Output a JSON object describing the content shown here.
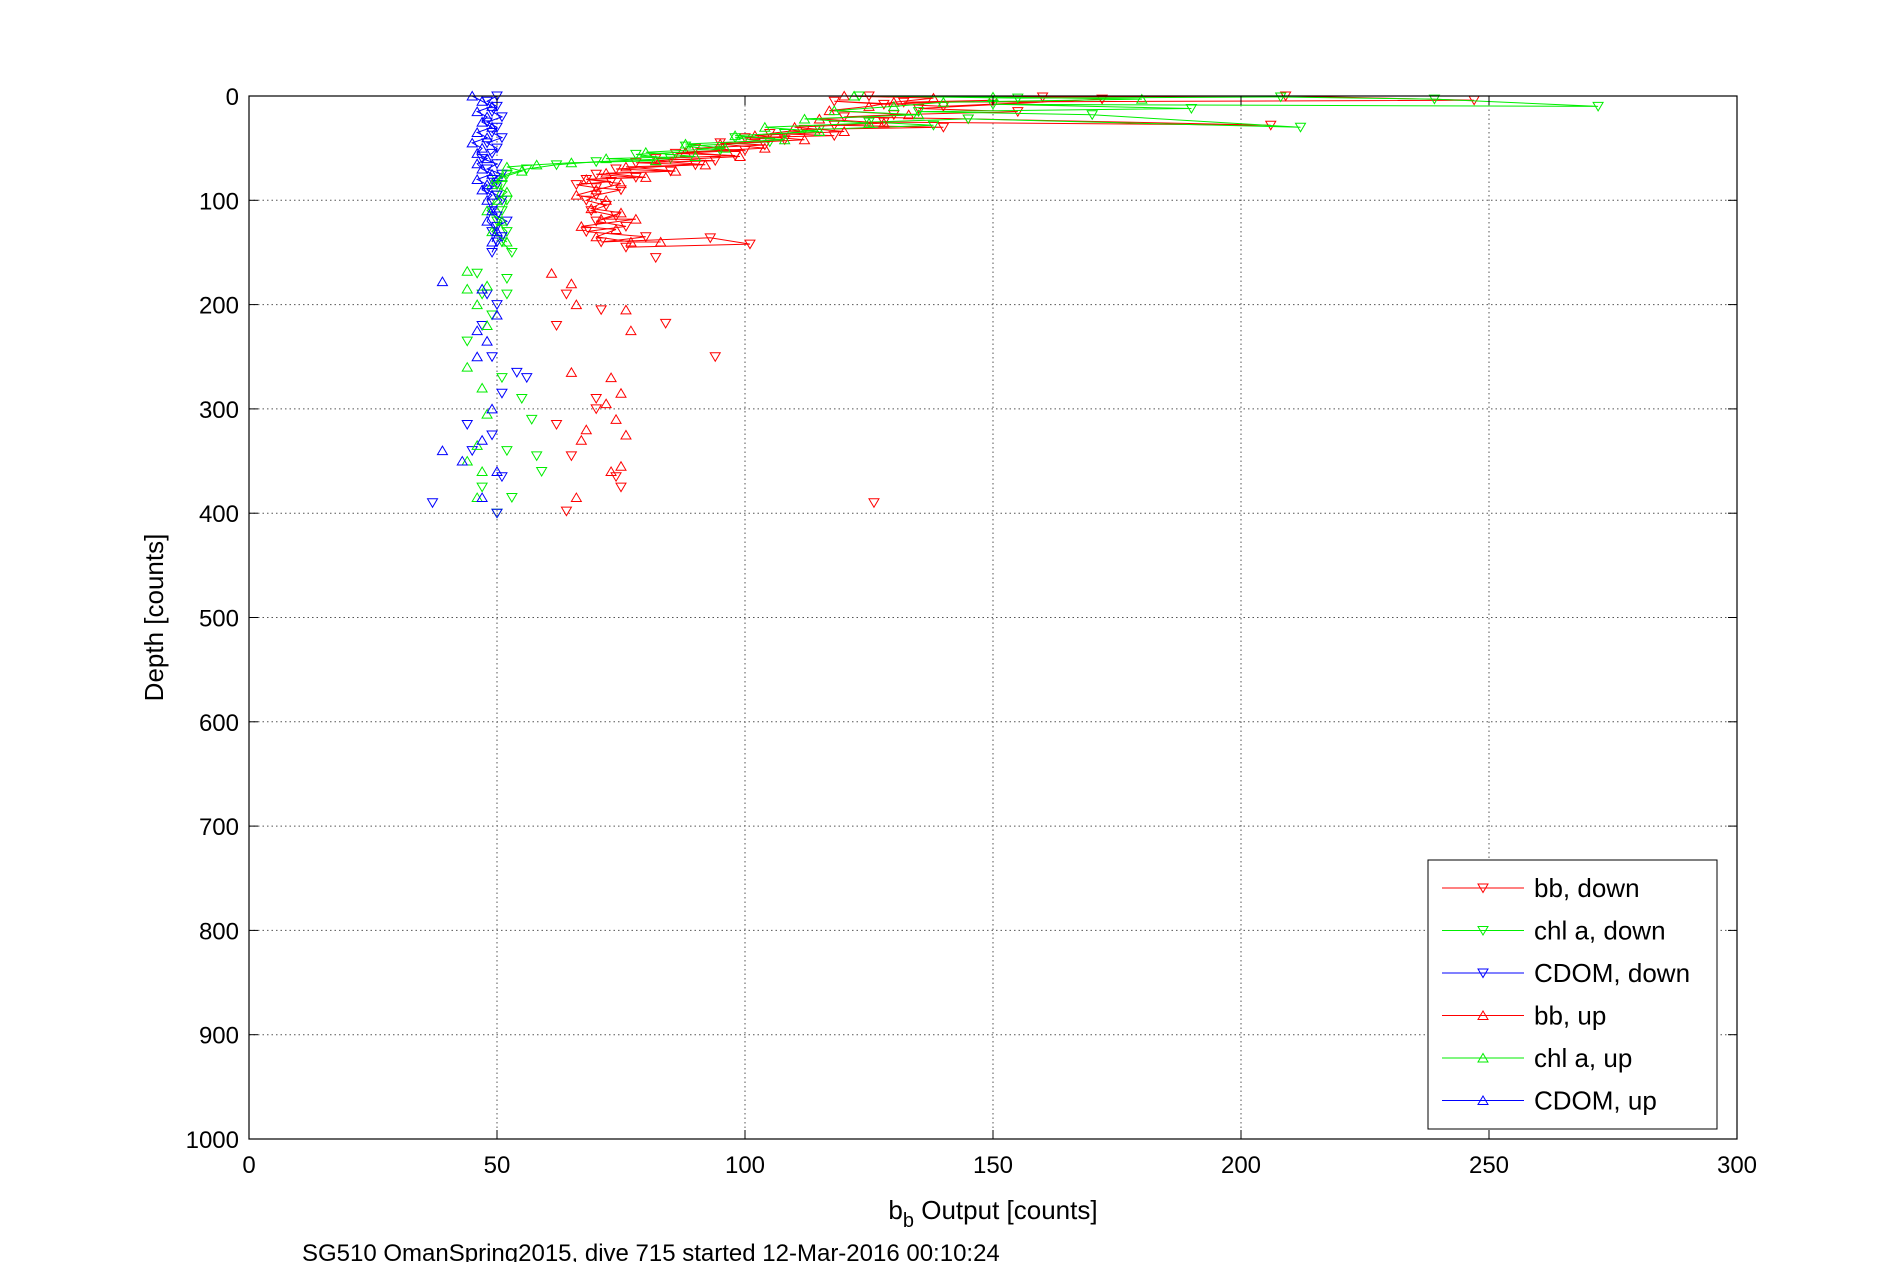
{
  "chart_data": {
    "type": "scatter",
    "title": "",
    "xlabel_main": "b",
    "xlabel_sub": "b",
    "xlabel_rest": " Output [counts]",
    "ylabel": "Depth [counts]",
    "caption": "SG510 OmanSpring2015, dive 715 started 12-Mar-2016 00:10:24",
    "xlim": [
      0,
      300
    ],
    "ylim": [
      0,
      1000
    ],
    "y_reversed": true,
    "grid": true,
    "legend_position": "bottom-right",
    "x_ticks": [
      0,
      50,
      100,
      150,
      200,
      250,
      300
    ],
    "x_tick_labels": [
      "0",
      "50",
      "100",
      "150",
      "200",
      "250",
      "300"
    ],
    "y_ticks": [
      0,
      100,
      200,
      300,
      400,
      500,
      600,
      700,
      800,
      900,
      1000
    ],
    "y_tick_labels": [
      "0",
      "100",
      "200",
      "300",
      "400",
      "500",
      "600",
      "700",
      "800",
      "900",
      "1000"
    ],
    "series": [
      {
        "name": "bb, down",
        "color": "#ff0000",
        "marker": "triangle-down",
        "connected": true,
        "points": [
          [
            125,
            0
          ],
          [
            160,
            1
          ],
          [
            209,
            0
          ],
          [
            247,
            4
          ],
          [
            132,
            6
          ],
          [
            150,
            4
          ],
          [
            128,
            8
          ],
          [
            118,
            5
          ],
          [
            140,
            10
          ],
          [
            172,
            3
          ],
          [
            135,
            12
          ],
          [
            155,
            15
          ],
          [
            130,
            18
          ],
          [
            120,
            20
          ],
          [
            145,
            22
          ],
          [
            206,
            28
          ],
          [
            128,
            25
          ],
          [
            118,
            28
          ],
          [
            140,
            30
          ],
          [
            112,
            32
          ],
          [
            105,
            36
          ],
          [
            118,
            38
          ],
          [
            100,
            40
          ],
          [
            108,
            42
          ],
          [
            95,
            45
          ],
          [
            104,
            47
          ],
          [
            90,
            50
          ],
          [
            100,
            52
          ],
          [
            86,
            55
          ],
          [
            98,
            57
          ],
          [
            82,
            60
          ],
          [
            94,
            62
          ],
          [
            78,
            64
          ],
          [
            90,
            66
          ],
          [
            74,
            70
          ],
          [
            85,
            72
          ],
          [
            70,
            75
          ],
          [
            78,
            78
          ],
          [
            68,
            80
          ],
          [
            73,
            82
          ],
          [
            66,
            85
          ],
          [
            70,
            88
          ],
          [
            75,
            90
          ],
          [
            70,
            95
          ],
          [
            68,
            100
          ],
          [
            72,
            105
          ],
          [
            69,
            110
          ],
          [
            74,
            115
          ],
          [
            70,
            120
          ],
          [
            76,
            125
          ],
          [
            68,
            130
          ],
          [
            80,
            135
          ],
          [
            71,
            140
          ],
          [
            93,
            136
          ],
          [
            101,
            142
          ],
          [
            76,
            145
          ],
          [
            82,
            155
          ],
          [
            64,
            190
          ],
          [
            62,
            220
          ],
          [
            71,
            205
          ],
          [
            84,
            218
          ],
          [
            94,
            250
          ],
          [
            70,
            290
          ],
          [
            62,
            315
          ],
          [
            65,
            345
          ],
          [
            74,
            365
          ],
          [
            70,
            300
          ],
          [
            126,
            390
          ],
          [
            75,
            375
          ],
          [
            64,
            398
          ]
        ]
      },
      {
        "name": "chl a, down",
        "color": "#00ee00",
        "marker": "triangle-down",
        "connected": true,
        "points": [
          [
            123,
            0
          ],
          [
            155,
            2
          ],
          [
            208,
            1
          ],
          [
            239,
            3
          ],
          [
            272,
            10
          ],
          [
            150,
            8
          ],
          [
            190,
            12
          ],
          [
            135,
            15
          ],
          [
            170,
            18
          ],
          [
            212,
            30
          ],
          [
            145,
            22
          ],
          [
            125,
            25
          ],
          [
            138,
            28
          ],
          [
            115,
            32
          ],
          [
            108,
            36
          ],
          [
            98,
            40
          ],
          [
            105,
            44
          ],
          [
            88,
            48
          ],
          [
            95,
            52
          ],
          [
            78,
            56
          ],
          [
            85,
            60
          ],
          [
            70,
            63
          ],
          [
            62,
            66
          ],
          [
            56,
            70
          ],
          [
            52,
            75
          ],
          [
            50,
            80
          ],
          [
            51,
            85
          ],
          [
            50,
            95
          ],
          [
            52,
            100
          ],
          [
            51,
            110
          ],
          [
            50,
            120
          ],
          [
            52,
            130
          ],
          [
            51,
            140
          ],
          [
            53,
            150
          ],
          [
            46,
            170
          ],
          [
            52,
            175
          ],
          [
            47,
            190
          ],
          [
            52,
            190
          ],
          [
            49,
            210
          ],
          [
            44,
            235
          ],
          [
            51,
            270
          ],
          [
            55,
            290
          ],
          [
            57,
            310
          ],
          [
            52,
            340
          ],
          [
            58,
            345
          ],
          [
            59,
            360
          ],
          [
            47,
            375
          ],
          [
            53,
            385
          ],
          [
            50,
            400
          ]
        ]
      },
      {
        "name": "CDOM, down",
        "color": "#0000ff",
        "marker": "triangle-down",
        "connected": true,
        "points": [
          [
            50,
            0
          ],
          [
            48,
            5
          ],
          [
            50,
            10
          ],
          [
            49,
            15
          ],
          [
            51,
            20
          ],
          [
            48,
            25
          ],
          [
            50,
            30
          ],
          [
            49,
            35
          ],
          [
            51,
            40
          ],
          [
            48,
            45
          ],
          [
            50,
            50
          ],
          [
            49,
            55
          ],
          [
            47,
            60
          ],
          [
            50,
            65
          ],
          [
            48,
            70
          ],
          [
            51,
            75
          ],
          [
            49,
            80
          ],
          [
            50,
            85
          ],
          [
            48,
            90
          ],
          [
            50,
            95
          ],
          [
            51,
            100
          ],
          [
            49,
            110
          ],
          [
            50,
            115
          ],
          [
            52,
            120
          ],
          [
            50,
            125
          ],
          [
            49,
            130
          ],
          [
            51,
            135
          ],
          [
            50,
            140
          ],
          [
            49,
            150
          ],
          [
            48,
            190
          ],
          [
            50,
            200
          ],
          [
            47,
            220
          ],
          [
            49,
            250
          ],
          [
            54,
            265
          ],
          [
            56,
            270
          ],
          [
            51,
            285
          ],
          [
            44,
            315
          ],
          [
            45,
            340
          ],
          [
            49,
            325
          ],
          [
            51,
            365
          ],
          [
            37,
            390
          ],
          [
            50,
            400
          ]
        ]
      },
      {
        "name": "bb, up",
        "color": "#ff0000",
        "marker": "triangle-up",
        "connected": true,
        "points": [
          [
            120,
            0
          ],
          [
            138,
            2
          ],
          [
            130,
            6
          ],
          [
            125,
            10
          ],
          [
            117,
            14
          ],
          [
            133,
            18
          ],
          [
            115,
            22
          ],
          [
            128,
            26
          ],
          [
            110,
            30
          ],
          [
            120,
            34
          ],
          [
            102,
            38
          ],
          [
            112,
            42
          ],
          [
            95,
            46
          ],
          [
            104,
            50
          ],
          [
            88,
            54
          ],
          [
            99,
            58
          ],
          [
            82,
            62
          ],
          [
            92,
            66
          ],
          [
            76,
            68
          ],
          [
            86,
            72
          ],
          [
            72,
            74
          ],
          [
            80,
            78
          ],
          [
            68,
            80
          ],
          [
            75,
            84
          ],
          [
            70,
            90
          ],
          [
            66,
            95
          ],
          [
            72,
            100
          ],
          [
            69,
            108
          ],
          [
            75,
            112
          ],
          [
            71,
            118
          ],
          [
            78,
            118
          ],
          [
            67,
            125
          ],
          [
            74,
            128
          ],
          [
            70,
            135
          ],
          [
            77,
            140
          ],
          [
            83,
            140
          ],
          [
            61,
            170
          ],
          [
            65,
            180
          ],
          [
            66,
            200
          ],
          [
            76,
            205
          ],
          [
            77,
            225
          ],
          [
            65,
            265
          ],
          [
            73,
            270
          ],
          [
            75,
            285
          ],
          [
            72,
            295
          ],
          [
            74,
            310
          ],
          [
            68,
            320
          ],
          [
            76,
            325
          ],
          [
            67,
            330
          ],
          [
            75,
            355
          ],
          [
            73,
            360
          ],
          [
            66,
            385
          ]
        ]
      },
      {
        "name": "chl a, up",
        "color": "#00ee00",
        "marker": "triangle-up",
        "connected": true,
        "points": [
          [
            122,
            0
          ],
          [
            150,
            1
          ],
          [
            180,
            3
          ],
          [
            140,
            6
          ],
          [
            130,
            10
          ],
          [
            118,
            14
          ],
          [
            135,
            18
          ],
          [
            112,
            22
          ],
          [
            125,
            26
          ],
          [
            104,
            30
          ],
          [
            115,
            34
          ],
          [
            98,
            38
          ],
          [
            108,
            42
          ],
          [
            88,
            46
          ],
          [
            96,
            50
          ],
          [
            80,
            54
          ],
          [
            90,
            58
          ],
          [
            72,
            60
          ],
          [
            82,
            62
          ],
          [
            65,
            64
          ],
          [
            58,
            66
          ],
          [
            52,
            68
          ],
          [
            55,
            72
          ],
          [
            51,
            78
          ],
          [
            49,
            85
          ],
          [
            52,
            92
          ],
          [
            50,
            100
          ],
          [
            48,
            110
          ],
          [
            51,
            120
          ],
          [
            49,
            130
          ],
          [
            52,
            140
          ],
          [
            44,
            168
          ],
          [
            48,
            182
          ],
          [
            44,
            185
          ],
          [
            46,
            200
          ],
          [
            48,
            220
          ],
          [
            44,
            260
          ],
          [
            47,
            280
          ],
          [
            48,
            305
          ],
          [
            46,
            335
          ],
          [
            44,
            350
          ],
          [
            47,
            360
          ],
          [
            46,
            385
          ]
        ]
      },
      {
        "name": "CDOM, up",
        "color": "#0000ff",
        "marker": "triangle-up",
        "connected": true,
        "points": [
          [
            45,
            0
          ],
          [
            47,
            5
          ],
          [
            49,
            10
          ],
          [
            46,
            15
          ],
          [
            48,
            20
          ],
          [
            47,
            25
          ],
          [
            49,
            30
          ],
          [
            46,
            35
          ],
          [
            48,
            40
          ],
          [
            45,
            45
          ],
          [
            47,
            50
          ],
          [
            46,
            55
          ],
          [
            48,
            60
          ],
          [
            46,
            65
          ],
          [
            47,
            70
          ],
          [
            49,
            75
          ],
          [
            46,
            80
          ],
          [
            48,
            85
          ],
          [
            47,
            90
          ],
          [
            49,
            95
          ],
          [
            48,
            100
          ],
          [
            49,
            110
          ],
          [
            48,
            120
          ],
          [
            50,
            130
          ],
          [
            49,
            140
          ],
          [
            39,
            178
          ],
          [
            47,
            185
          ],
          [
            50,
            210
          ],
          [
            46,
            225
          ],
          [
            48,
            235
          ],
          [
            46,
            250
          ],
          [
            49,
            300
          ],
          [
            47,
            330
          ],
          [
            39,
            340
          ],
          [
            43,
            350
          ],
          [
            50,
            360
          ],
          [
            47,
            385
          ]
        ]
      }
    ]
  }
}
